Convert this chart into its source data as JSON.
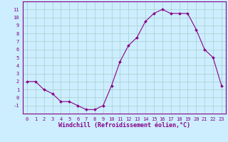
{
  "x": [
    0,
    1,
    2,
    3,
    4,
    5,
    6,
    7,
    8,
    9,
    10,
    11,
    12,
    13,
    14,
    15,
    16,
    17,
    18,
    19,
    20,
    21,
    22,
    23
  ],
  "y": [
    2,
    2,
    1,
    0.5,
    -0.5,
    -0.5,
    -1,
    -1.5,
    -1.5,
    -1,
    1.5,
    4.5,
    6.5,
    7.5,
    9.5,
    10.5,
    11,
    10.5,
    10.5,
    10.5,
    8.5,
    6,
    5,
    1.5
  ],
  "line_color": "#880088",
  "marker": "D",
  "marker_size": 2.0,
  "bg_color": "#cceeff",
  "grid_color": "#aacccc",
  "xlabel": "Windchill (Refroidissement éolien,°C)",
  "ylim": [
    -2,
    12
  ],
  "xlim": [
    -0.5,
    23.5
  ],
  "yticks": [
    -1,
    0,
    1,
    2,
    3,
    4,
    5,
    6,
    7,
    8,
    9,
    10,
    11
  ],
  "xticks": [
    0,
    1,
    2,
    3,
    4,
    5,
    6,
    7,
    8,
    9,
    10,
    11,
    12,
    13,
    14,
    15,
    16,
    17,
    18,
    19,
    20,
    21,
    22,
    23
  ],
  "tick_fontsize": 5.0,
  "xlabel_fontsize": 6.0,
  "axis_color": "#880088",
  "spine_color": "#880088"
}
